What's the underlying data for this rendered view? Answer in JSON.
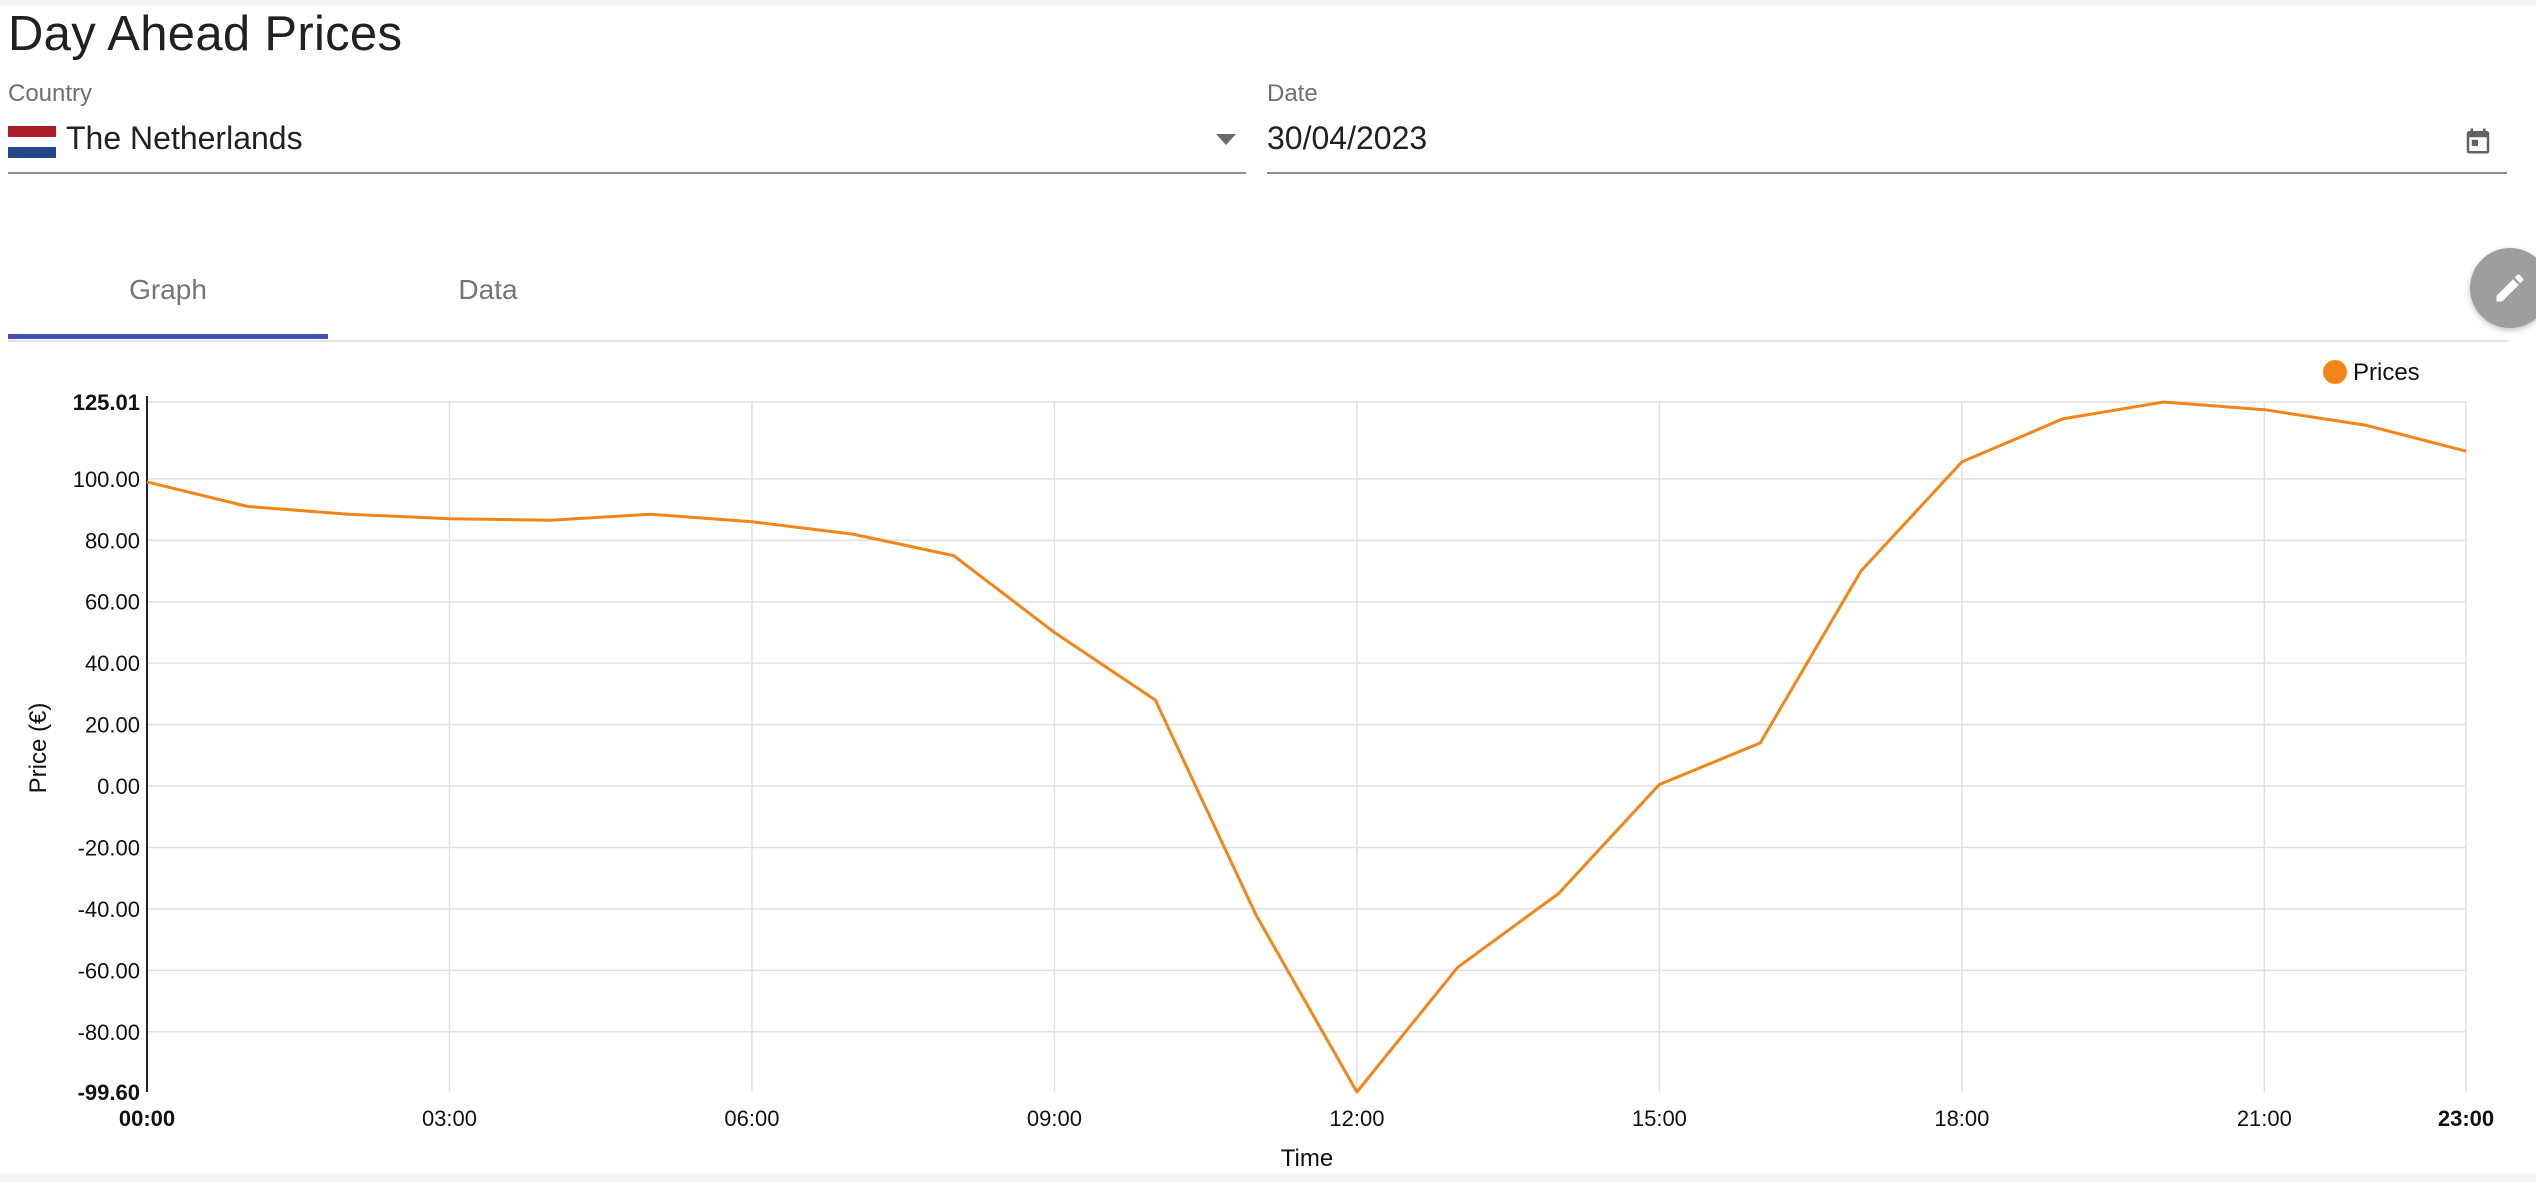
{
  "page": {
    "title": "Day Ahead Prices"
  },
  "country": {
    "label": "Country",
    "value": "The Netherlands",
    "flag_colors": [
      "#ae1c28",
      "#ffffff",
      "#21468b"
    ]
  },
  "date": {
    "label": "Date",
    "value": "30/04/2023"
  },
  "tabs": [
    {
      "label": "Graph",
      "active": true
    },
    {
      "label": "Data",
      "active": false
    }
  ],
  "colors": {
    "accent": "#3f51b5",
    "series": "#f28518"
  },
  "icons": {
    "fab": "pencil-icon",
    "date": "calendar-icon",
    "country": "chevron-down-icon"
  },
  "chart_data": {
    "type": "line",
    "xlabel": "Time",
    "ylabel": "Price (€)",
    "legend": "top-right",
    "grid": true,
    "ylim": [
      -99.6,
      125.01
    ],
    "xlim": [
      0,
      23
    ],
    "y_ticks": [
      "125.01",
      "100.00",
      "80.00",
      "60.00",
      "40.00",
      "20.00",
      "0.00",
      "-20.00",
      "-40.00",
      "-60.00",
      "-80.00",
      "-99.60"
    ],
    "x_ticks": [
      "00:00",
      "03:00",
      "06:00",
      "09:00",
      "12:00",
      "15:00",
      "18:00",
      "21:00",
      "23:00"
    ],
    "series": [
      {
        "name": "Prices",
        "color": "#f28518",
        "x": [
          0,
          1,
          2,
          3,
          4,
          5,
          6,
          7,
          8,
          9,
          10,
          11,
          12,
          13,
          14,
          15,
          16,
          17,
          18,
          19,
          20,
          21,
          22,
          23
        ],
        "values": [
          99.0,
          91.0,
          88.5,
          87.0,
          86.5,
          88.5,
          86.0,
          82.0,
          75.0,
          50.0,
          28.0,
          -42.0,
          -99.6,
          -59.0,
          -35.0,
          0.5,
          14.0,
          70.0,
          105.5,
          119.5,
          125.01,
          122.5,
          117.5,
          109.0
        ]
      }
    ]
  }
}
